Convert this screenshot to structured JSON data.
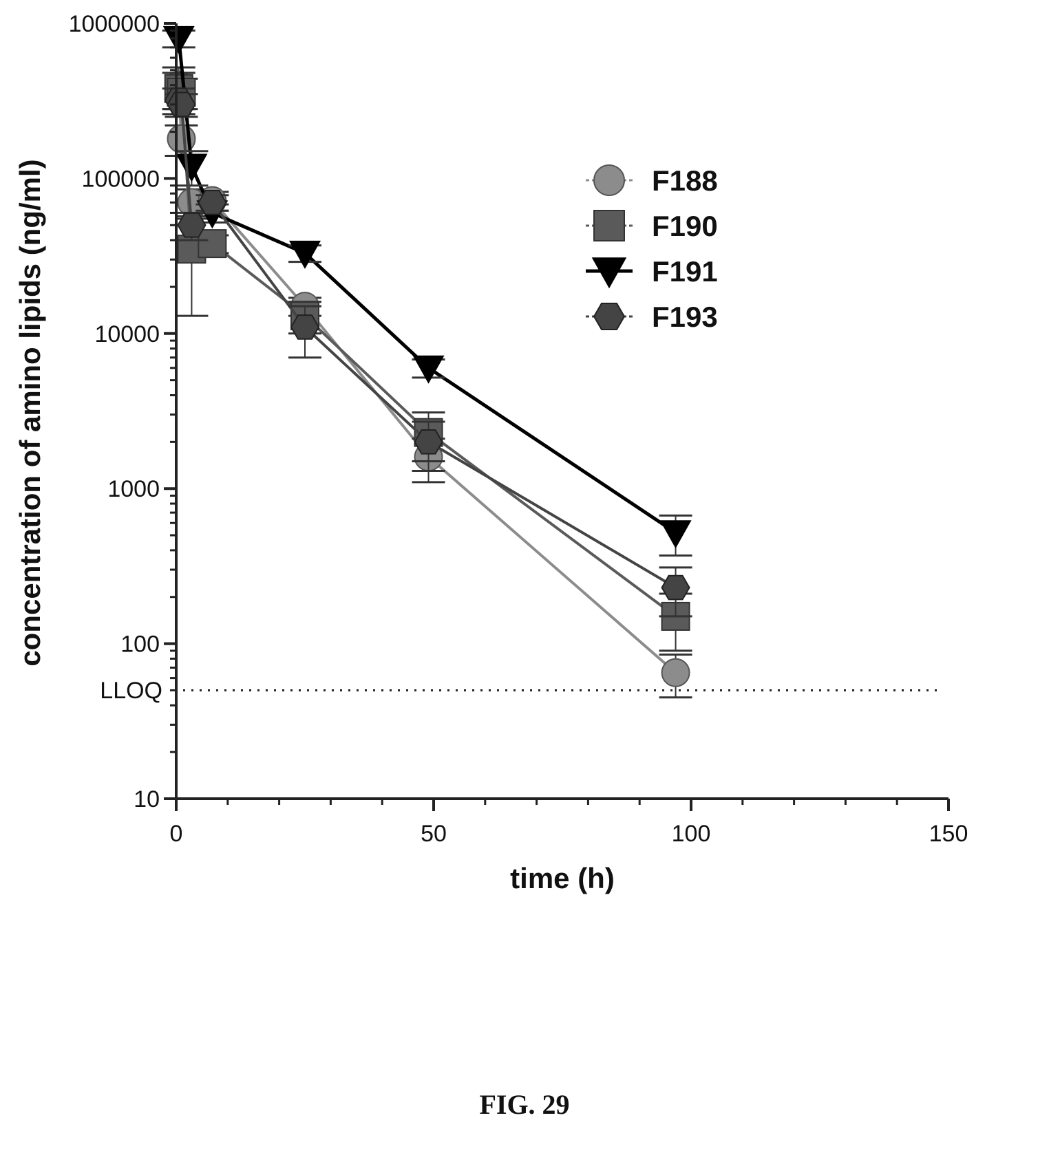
{
  "figure": {
    "caption": "FIG. 29"
  },
  "chart_data": {
    "type": "line",
    "title": "",
    "xlabel": "time (h)",
    "ylabel": "concentration of amino lipids  (ng/ml)",
    "xlim": [
      0,
      150
    ],
    "ylim": [
      10,
      1000000
    ],
    "yscale": "log",
    "x_ticks": [
      0,
      50,
      100,
      150
    ],
    "x_tick_labels": [
      "0",
      "50",
      "100",
      "150"
    ],
    "y_ticks": [
      10,
      100,
      1000,
      10000,
      100000,
      1000000
    ],
    "y_tick_labels": [
      "10",
      "100",
      "1000",
      "10000",
      "100000",
      "1000000"
    ],
    "grid": false,
    "legend_position": "top-right",
    "reference_line": {
      "label": "LLOQ",
      "y": 50,
      "style": "dotted"
    },
    "series": [
      {
        "name": "F188",
        "marker": "circle",
        "color": "#8c8c8c",
        "x": [
          0.5,
          1,
          3,
          7,
          25,
          49,
          97
        ],
        "y": [
          400000,
          180000,
          70000,
          72000,
          15000,
          1600,
          65
        ],
        "err": [
          120000,
          40000,
          15000,
          10000,
          2000,
          500,
          20
        ]
      },
      {
        "name": "F190",
        "marker": "square",
        "color": "#5a5a5a",
        "x": [
          0.5,
          1,
          3,
          7,
          25,
          49,
          97
        ],
        "y": [
          380000,
          360000,
          35000,
          38000,
          13000,
          2300,
          150
        ],
        "err": [
          100000,
          80000,
          22000,
          5000,
          3000,
          800,
          60
        ]
      },
      {
        "name": "F191",
        "marker": "triangle-down",
        "color": "#000000",
        "x": [
          0.5,
          3,
          7,
          25,
          49,
          97
        ],
        "y": [
          800000,
          120000,
          60000,
          33000,
          6000,
          520
        ],
        "err": [
          100000,
          30000,
          8000,
          4000,
          800,
          150
        ]
      },
      {
        "name": "F193",
        "marker": "hexagon",
        "color": "#444444",
        "x": [
          0.5,
          1,
          3,
          7,
          25,
          49,
          97
        ],
        "y": [
          320000,
          300000,
          50000,
          70000,
          11000,
          2000,
          230
        ],
        "err": [
          60000,
          50000,
          10000,
          8000,
          4000,
          700,
          80
        ]
      }
    ]
  }
}
